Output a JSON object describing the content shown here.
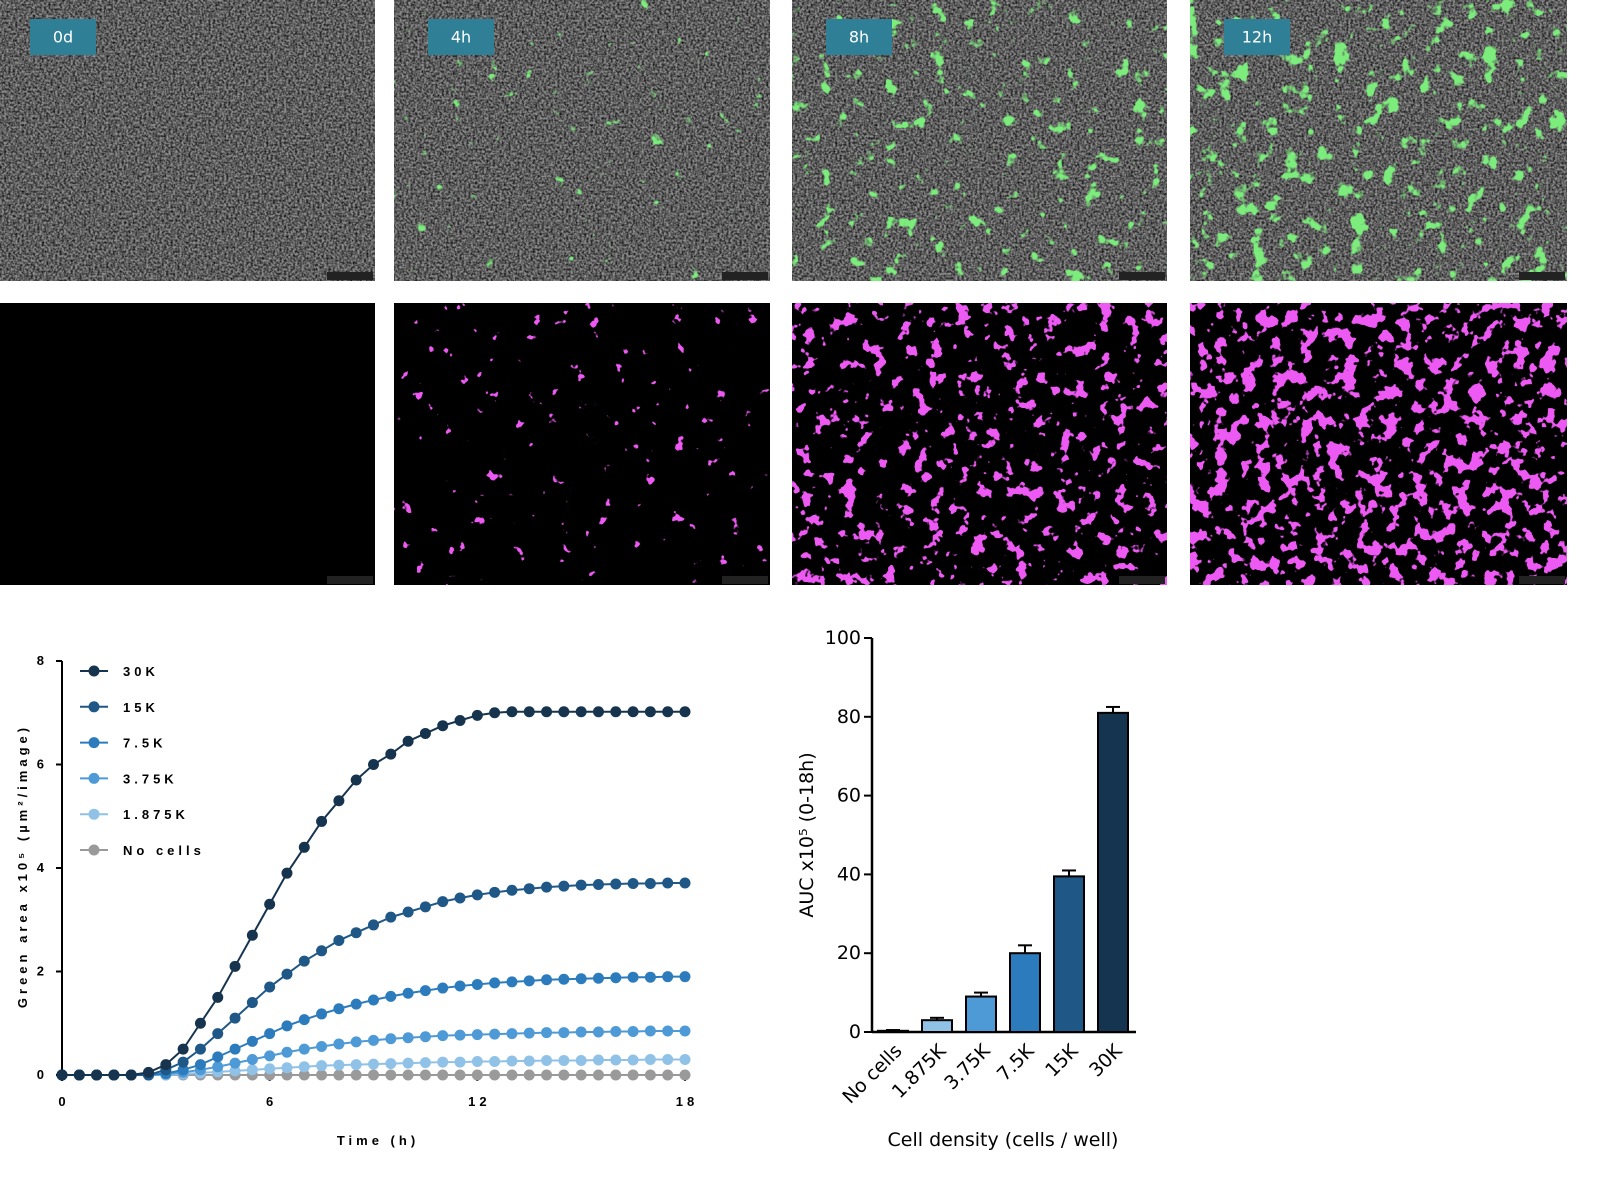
{
  "panels": [
    {
      "label": "0d"
    },
    {
      "label": "4h"
    },
    {
      "label": "8h"
    },
    {
      "label": "12h"
    }
  ],
  "chart_data": [
    {
      "type": "line",
      "x_label": "Time (h)",
      "y_label": "Green area x10⁵ (µm²/image)",
      "x": [
        0,
        0.5,
        1,
        1.5,
        2,
        2.5,
        3,
        3.5,
        4,
        4.5,
        5,
        5.5,
        6,
        6.5,
        7,
        7.5,
        8,
        8.5,
        9,
        9.5,
        10,
        10.5,
        11,
        11.5,
        12,
        12.5,
        13,
        13.5,
        14,
        14.5,
        15,
        15.5,
        16,
        16.5,
        17,
        17.5,
        18
      ],
      "xlim": [
        0,
        18
      ],
      "xticks": [
        0,
        6,
        12,
        18
      ],
      "ylim": [
        0,
        8
      ],
      "yticks": [
        0,
        2,
        4,
        6,
        8
      ],
      "legend": "top-left",
      "series": [
        {
          "name": "30K",
          "color": "#17344f",
          "values": [
            0,
            0,
            0,
            0,
            0,
            0.05,
            0.2,
            0.5,
            1.0,
            1.5,
            2.1,
            2.7,
            3.3,
            3.9,
            4.4,
            4.9,
            5.3,
            5.7,
            6.0,
            6.2,
            6.45,
            6.6,
            6.75,
            6.85,
            6.95,
            7.0,
            7.02,
            7.02,
            7.02,
            7.02,
            7.02,
            7.02,
            7.02,
            7.02,
            7.02,
            7.02,
            7.02
          ]
        },
        {
          "name": "15K",
          "color": "#1f5787",
          "values": [
            0,
            0,
            0,
            0,
            0,
            0,
            0.1,
            0.25,
            0.5,
            0.8,
            1.1,
            1.4,
            1.7,
            1.95,
            2.2,
            2.4,
            2.6,
            2.75,
            2.9,
            3.05,
            3.15,
            3.25,
            3.35,
            3.42,
            3.48,
            3.53,
            3.57,
            3.6,
            3.63,
            3.65,
            3.67,
            3.68,
            3.69,
            3.7,
            3.7,
            3.71,
            3.71
          ]
        },
        {
          "name": "7.5K",
          "color": "#2c7cbd",
          "values": [
            0,
            0,
            0,
            0,
            0,
            0,
            0.03,
            0.1,
            0.2,
            0.35,
            0.5,
            0.65,
            0.8,
            0.95,
            1.07,
            1.18,
            1.28,
            1.37,
            1.45,
            1.52,
            1.58,
            1.63,
            1.68,
            1.72,
            1.75,
            1.78,
            1.8,
            1.82,
            1.84,
            1.85,
            1.86,
            1.87,
            1.88,
            1.89,
            1.89,
            1.9,
            1.9
          ]
        },
        {
          "name": "3.75K",
          "color": "#4e9ad6",
          "values": [
            0,
            0,
            0,
            0,
            0,
            0,
            0.02,
            0.05,
            0.1,
            0.16,
            0.23,
            0.3,
            0.37,
            0.44,
            0.5,
            0.55,
            0.6,
            0.64,
            0.67,
            0.7,
            0.72,
            0.74,
            0.76,
            0.77,
            0.78,
            0.79,
            0.8,
            0.81,
            0.82,
            0.82,
            0.83,
            0.83,
            0.84,
            0.84,
            0.85,
            0.85,
            0.85
          ]
        },
        {
          "name": "1.875K",
          "color": "#90c2e8",
          "values": [
            0,
            0,
            0,
            0,
            0,
            0,
            0,
            0.02,
            0.04,
            0.06,
            0.08,
            0.1,
            0.12,
            0.14,
            0.16,
            0.18,
            0.19,
            0.2,
            0.21,
            0.22,
            0.23,
            0.24,
            0.25,
            0.25,
            0.26,
            0.26,
            0.27,
            0.27,
            0.28,
            0.28,
            0.28,
            0.29,
            0.29,
            0.29,
            0.3,
            0.3,
            0.3
          ]
        },
        {
          "name": "No cells",
          "color": "#9a9a9a",
          "values": [
            0,
            0,
            0,
            0,
            0,
            0,
            0,
            0,
            0,
            0,
            0,
            0,
            0,
            0,
            0,
            0,
            0,
            0,
            0,
            0,
            0,
            0,
            0,
            0,
            0,
            0,
            0,
            0,
            0,
            0,
            0,
            0,
            0,
            0,
            0,
            0,
            0
          ]
        }
      ]
    },
    {
      "type": "bar",
      "x_label": "Cell density (cells / well)",
      "y_label": "AUC x10⁵ (0-18h)",
      "categories": [
        "No cells",
        "1.875K",
        "3.75K",
        "7.5K",
        "15K",
        "30K"
      ],
      "values": [
        0.3,
        3,
        9,
        20,
        39.5,
        81
      ],
      "errors": [
        0.2,
        0.6,
        1,
        2,
        1.5,
        1.5
      ],
      "colors": [
        "#cfe3f3",
        "#90c2e8",
        "#4e9ad6",
        "#2c7cbd",
        "#1f5787",
        "#14344f"
      ],
      "ylim": [
        0,
        100
      ],
      "yticks": [
        0,
        20,
        40,
        60,
        80,
        100
      ]
    }
  ]
}
